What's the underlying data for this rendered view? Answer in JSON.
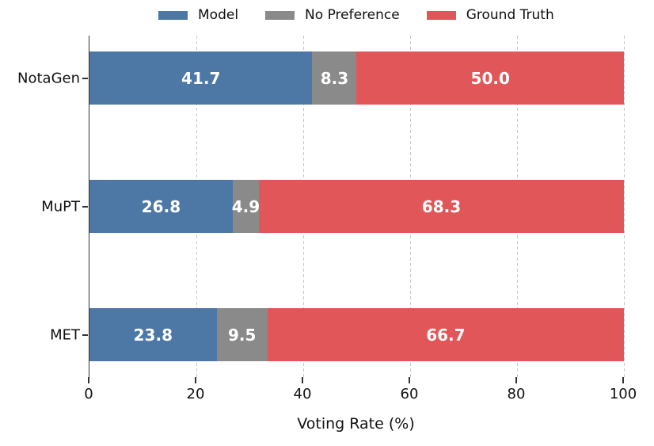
{
  "chart_data": {
    "type": "bar",
    "orientation": "horizontal",
    "stacked": true,
    "title": "",
    "xlabel": "Voting Rate (%)",
    "ylabel": "",
    "xlim": [
      0,
      100
    ],
    "xticks": [
      "0",
      "20",
      "40",
      "60",
      "80",
      "100"
    ],
    "xtick_values": [
      0,
      20,
      40,
      60,
      80,
      100
    ],
    "grid": "vertical-dashed",
    "legend_position": "top-center",
    "categories": [
      "NotaGen",
      "MuPT",
      "MET"
    ],
    "series": [
      {
        "name": "Model",
        "color": "#4d78a6",
        "values": [
          41.7,
          26.8,
          23.8
        ]
      },
      {
        "name": "No Preference",
        "color": "#8a8a8a",
        "values": [
          8.3,
          4.9,
          9.5
        ]
      },
      {
        "name": "Ground Truth",
        "color": "#e15759",
        "values": [
          50.0,
          68.3,
          66.7
        ]
      }
    ],
    "value_label_color": "#ffffff"
  }
}
